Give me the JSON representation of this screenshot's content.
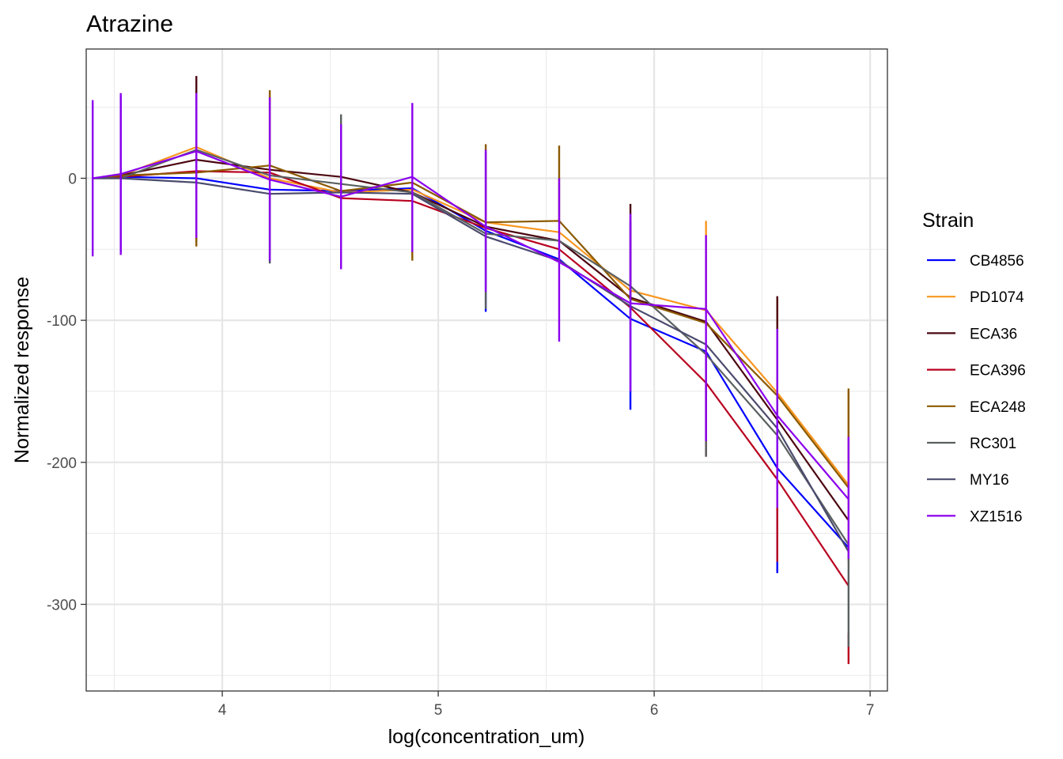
{
  "chart_data": {
    "type": "line",
    "title": "Atrazine",
    "xlabel": "log(concentration_um)",
    "ylabel": "Normalized response",
    "xlim": [
      3.37,
      7.08
    ],
    "ylim": [
      -361,
      91
    ],
    "x_ticks": [
      4,
      5,
      6,
      7
    ],
    "x_tick_labels": [
      "4",
      "5",
      "6",
      "7"
    ],
    "y_ticks": [
      0,
      -100,
      -200,
      -300
    ],
    "y_tick_labels": [
      "0",
      "-100",
      "-200",
      "-300"
    ],
    "x": [
      3.4,
      3.53,
      3.88,
      4.22,
      4.55,
      4.88,
      5.22,
      5.56,
      5.89,
      6.24,
      6.57,
      6.9
    ],
    "grid": true,
    "legend_position": "right",
    "legend_title": "Strain",
    "series": [
      {
        "name": "CB4856",
        "color": "#0000ff",
        "values": [
          0,
          1,
          0,
          -8,
          -9,
          -7,
          -37,
          -57,
          -99,
          -122,
          -204,
          -260
        ],
        "err_low": [
          null,
          -52,
          null,
          null,
          null,
          null,
          -94,
          null,
          -163,
          null,
          -278,
          null
        ],
        "err_high": [
          null,
          58,
          null,
          null,
          null,
          null,
          18,
          null,
          -30,
          null,
          -108,
          null
        ]
      },
      {
        "name": "PD1074",
        "color": "#f8961e",
        "values": [
          0,
          2,
          22,
          0,
          -10,
          -8,
          -31,
          -38,
          -79,
          -93,
          -151,
          -216
        ],
        "err_low": [
          null,
          null,
          null,
          null,
          null,
          null,
          null,
          null,
          null,
          null,
          null,
          -270
        ],
        "err_high": [
          null,
          null,
          null,
          null,
          null,
          null,
          null,
          null,
          null,
          -30,
          -85,
          -150
        ]
      },
      {
        "name": "ECA36",
        "color": "#4b0610",
        "values": [
          0,
          2,
          13,
          6,
          1,
          -10,
          -34,
          -44,
          -84,
          -101,
          -170,
          -241
        ],
        "err_low": [
          null,
          null,
          -45,
          null,
          null,
          null,
          null,
          null,
          null,
          null,
          null,
          null
        ],
        "err_high": [
          null,
          null,
          72,
          null,
          null,
          null,
          null,
          null,
          -18,
          null,
          -83,
          null
        ]
      },
      {
        "name": "ECA396",
        "color": "#b8001f",
        "values": [
          0,
          1,
          5,
          4,
          -14,
          -16,
          -35,
          -50,
          -91,
          -144,
          -212,
          -287
        ],
        "err_low": [
          null,
          null,
          null,
          null,
          null,
          null,
          null,
          null,
          null,
          -196,
          -270,
          -342
        ],
        "err_high": [
          null,
          null,
          null,
          null,
          null,
          null,
          null,
          null,
          null,
          null,
          null,
          -320
        ]
      },
      {
        "name": "ECA248",
        "color": "#8b5a00",
        "values": [
          0,
          2,
          4,
          9,
          -9,
          -3,
          -31,
          -30,
          -85,
          -102,
          -153,
          -218
        ],
        "err_low": [
          null,
          null,
          -48,
          null,
          null,
          -58,
          null,
          null,
          null,
          null,
          null,
          null
        ],
        "err_high": [
          null,
          null,
          null,
          62,
          null,
          null,
          24,
          23,
          null,
          null,
          null,
          -148
        ]
      },
      {
        "name": "RC301",
        "color": "#5a6060",
        "values": [
          0,
          0,
          20,
          2,
          -4,
          -10,
          -39,
          -44,
          -76,
          -124,
          -181,
          -258
        ],
        "err_low": [
          null,
          null,
          null,
          null,
          null,
          null,
          -92,
          null,
          null,
          -196,
          null,
          -330
        ],
        "err_high": [
          null,
          null,
          null,
          null,
          45,
          null,
          null,
          null,
          null,
          null,
          null,
          null
        ]
      },
      {
        "name": "MY16",
        "color": "#4b4b6e",
        "values": [
          0,
          0,
          -3,
          -11,
          -10,
          -11,
          -41,
          -58,
          -90,
          -117,
          -176,
          -263
        ],
        "err_low": [
          null,
          null,
          null,
          -60,
          null,
          null,
          null,
          null,
          null,
          null,
          null,
          null
        ],
        "err_high": [
          null,
          null,
          null,
          null,
          null,
          null,
          null,
          null,
          null,
          null,
          null,
          null
        ]
      },
      {
        "name": "XZ1516",
        "color": "#8b00ee",
        "values": [
          0,
          3,
          19,
          -1,
          -13,
          1,
          -34,
          -59,
          -88,
          -92,
          -167,
          -226
        ],
        "err_low": [
          -55,
          -54,
          -42,
          -58,
          -64,
          -52,
          -80,
          -115,
          -150,
          -185,
          -232,
          -268
        ],
        "err_high": [
          55,
          60,
          60,
          57,
          38,
          53,
          20,
          0,
          -25,
          -40,
          -106,
          -182
        ]
      }
    ]
  }
}
